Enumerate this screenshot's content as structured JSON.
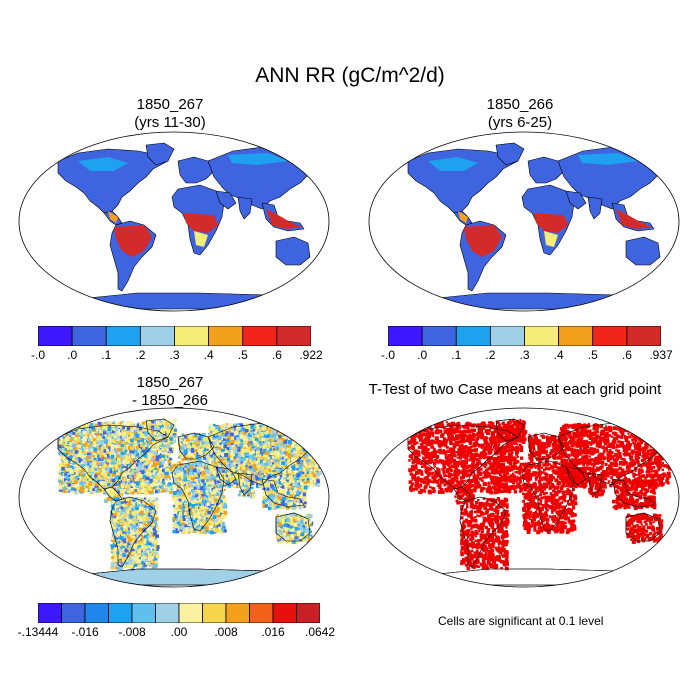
{
  "figure": {
    "title": "ANN RR (gC/m^2/d)"
  },
  "panels": [
    {
      "id": "p1",
      "title_line1": "1850_267",
      "title_line2": "(yrs 11-30)",
      "colorbar": {
        "colors": [
          "#3c17ff",
          "#3f64e0",
          "#1ea1ee",
          "#a0cfe8",
          "#f6ec78",
          "#f3a01c",
          "#f2251b",
          "#d32a2a"
        ],
        "labels": [
          "-.0",
          ".0",
          ".1",
          ".2",
          ".3",
          ".4",
          ".5",
          ".6",
          ".922"
        ]
      }
    },
    {
      "id": "p2",
      "title_line1": "1850_266",
      "title_line2": "(yrs 6-25)",
      "colorbar": {
        "colors": [
          "#3c17ff",
          "#3f64e0",
          "#1ea1ee",
          "#a0cfe8",
          "#f6ec78",
          "#f3a01c",
          "#f2251b",
          "#d32a2a"
        ],
        "labels": [
          "-.0",
          ".0",
          ".1",
          ".2",
          ".3",
          ".4",
          ".5",
          ".6",
          ".937"
        ]
      }
    },
    {
      "id": "p3",
      "title_line1": "1850_267",
      "title_line2": "- 1850_266",
      "colorbar": {
        "colors": [
          "#3c17ff",
          "#3f64e0",
          "#2186ea",
          "#1ea1ee",
          "#5fc0ee",
          "#a0cfe8",
          "#fbf1a0",
          "#f6d54c",
          "#f3a01c",
          "#f2611b",
          "#e8100f",
          "#c91f26"
        ],
        "labels": [
          "-.13444",
          "-.016",
          "-.008",
          ".00",
          ".008",
          ".016",
          ".0642"
        ]
      }
    },
    {
      "id": "p4",
      "title_line1": "T-Test of two Case means at each grid point",
      "note": "Cells are significant at 0.1 level",
      "significance_color": "#ee0000"
    }
  ],
  "map_colors": {
    "ocean": "#ffffff",
    "p1_base": "#3f64e0",
    "p2_base": "#3f64e0",
    "p3_base": "#a0cfe8",
    "p4_base": "#ffffff",
    "tropics": "#d32a2a"
  }
}
